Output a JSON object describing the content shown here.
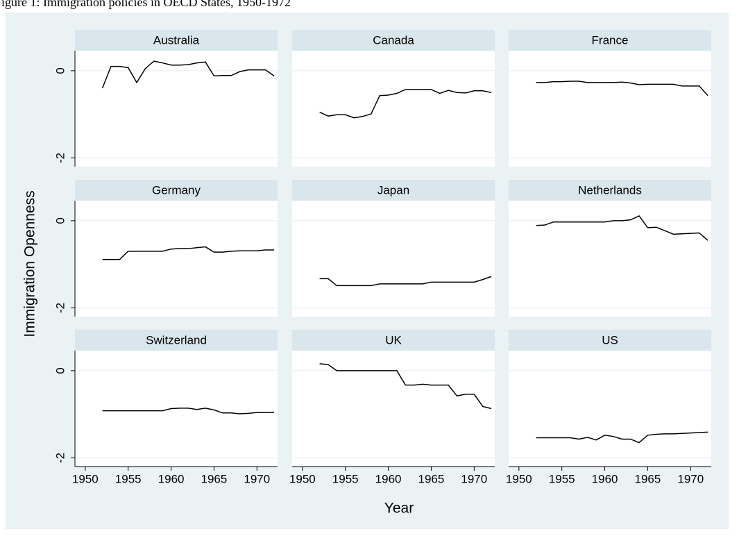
{
  "caption": "Figure 1: Immigration policies in OECD States, 1950-1972",
  "chart_data": {
    "type": "line",
    "facets": true,
    "x_label": "Year",
    "y_label": "Immigration Openness",
    "xlim": [
      1948.8,
      1972.4
    ],
    "xticks": [
      1950,
      1955,
      1960,
      1965,
      1970
    ],
    "ylim": [
      -2.2,
      0.46
    ],
    "yticks": [
      0,
      -2
    ],
    "grid": true,
    "x": [
      1952,
      1953,
      1954,
      1955,
      1956,
      1957,
      1958,
      1959,
      1960,
      1961,
      1962,
      1963,
      1964,
      1965,
      1966,
      1967,
      1968,
      1969,
      1970,
      1971,
      1972
    ],
    "series": [
      {
        "name": "Australia",
        "color": "#000000",
        "values": [
          -0.4,
          0.1,
          0.1,
          0.07,
          -0.27,
          0.05,
          0.22,
          0.18,
          0.13,
          0.13,
          0.14,
          0.18,
          0.2,
          -0.12,
          -0.11,
          -0.11,
          -0.02,
          0.02,
          0.02,
          0.02,
          -0.12
        ]
      },
      {
        "name": "Canada",
        "color": "#000000",
        "values": [
          -0.95,
          -1.04,
          -1.01,
          -1.01,
          -1.08,
          -1.05,
          -0.99,
          -0.57,
          -0.56,
          -0.52,
          -0.43,
          -0.43,
          -0.43,
          -0.43,
          -0.52,
          -0.45,
          -0.5,
          -0.51,
          -0.46,
          -0.46,
          -0.5
        ]
      },
      {
        "name": "France",
        "color": "#000000",
        "values": [
          -0.27,
          -0.27,
          -0.25,
          -0.25,
          -0.24,
          -0.24,
          -0.27,
          -0.27,
          -0.27,
          -0.27,
          -0.26,
          -0.28,
          -0.32,
          -0.31,
          -0.31,
          -0.31,
          -0.31,
          -0.35,
          -0.35,
          -0.35,
          -0.57
        ]
      },
      {
        "name": "Germany",
        "color": "#000000",
        "values": [
          -0.89,
          -0.89,
          -0.89,
          -0.7,
          -0.7,
          -0.7,
          -0.7,
          -0.7,
          -0.65,
          -0.64,
          -0.64,
          -0.62,
          -0.6,
          -0.72,
          -0.72,
          -0.7,
          -0.69,
          -0.69,
          -0.69,
          -0.67,
          -0.67
        ]
      },
      {
        "name": "Japan",
        "color": "#000000",
        "values": [
          -1.33,
          -1.33,
          -1.49,
          -1.49,
          -1.49,
          -1.49,
          -1.49,
          -1.45,
          -1.45,
          -1.45,
          -1.45,
          -1.45,
          -1.45,
          -1.41,
          -1.41,
          -1.41,
          -1.41,
          -1.41,
          -1.41,
          -1.35,
          -1.28
        ]
      },
      {
        "name": "Netherlands",
        "color": "#000000",
        "values": [
          -0.11,
          -0.1,
          -0.03,
          -0.03,
          -0.03,
          -0.03,
          -0.03,
          -0.03,
          -0.03,
          0.0,
          0.0,
          0.02,
          0.11,
          -0.16,
          -0.15,
          -0.23,
          -0.31,
          -0.3,
          -0.29,
          -0.28,
          -0.45
        ]
      },
      {
        "name": "Switzerland",
        "color": "#000000",
        "values": [
          -0.92,
          -0.92,
          -0.92,
          -0.92,
          -0.92,
          -0.92,
          -0.92,
          -0.92,
          -0.87,
          -0.86,
          -0.86,
          -0.89,
          -0.86,
          -0.9,
          -0.97,
          -0.97,
          -0.99,
          -0.98,
          -0.96,
          -0.96,
          -0.96
        ]
      },
      {
        "name": "UK",
        "color": "#000000",
        "values": [
          0.16,
          0.14,
          0.0,
          0.0,
          0.0,
          0.0,
          0.0,
          0.0,
          0.0,
          0.0,
          -0.33,
          -0.33,
          -0.31,
          -0.33,
          -0.33,
          -0.33,
          -0.58,
          -0.54,
          -0.54,
          -0.82,
          -0.87
        ]
      },
      {
        "name": "US",
        "color": "#000000",
        "values": [
          -1.54,
          -1.54,
          -1.54,
          -1.54,
          -1.54,
          -1.57,
          -1.53,
          -1.59,
          -1.48,
          -1.51,
          -1.57,
          -1.57,
          -1.65,
          -1.48,
          -1.46,
          -1.45,
          -1.45,
          -1.44,
          -1.43,
          -1.42,
          -1.41
        ]
      }
    ]
  }
}
